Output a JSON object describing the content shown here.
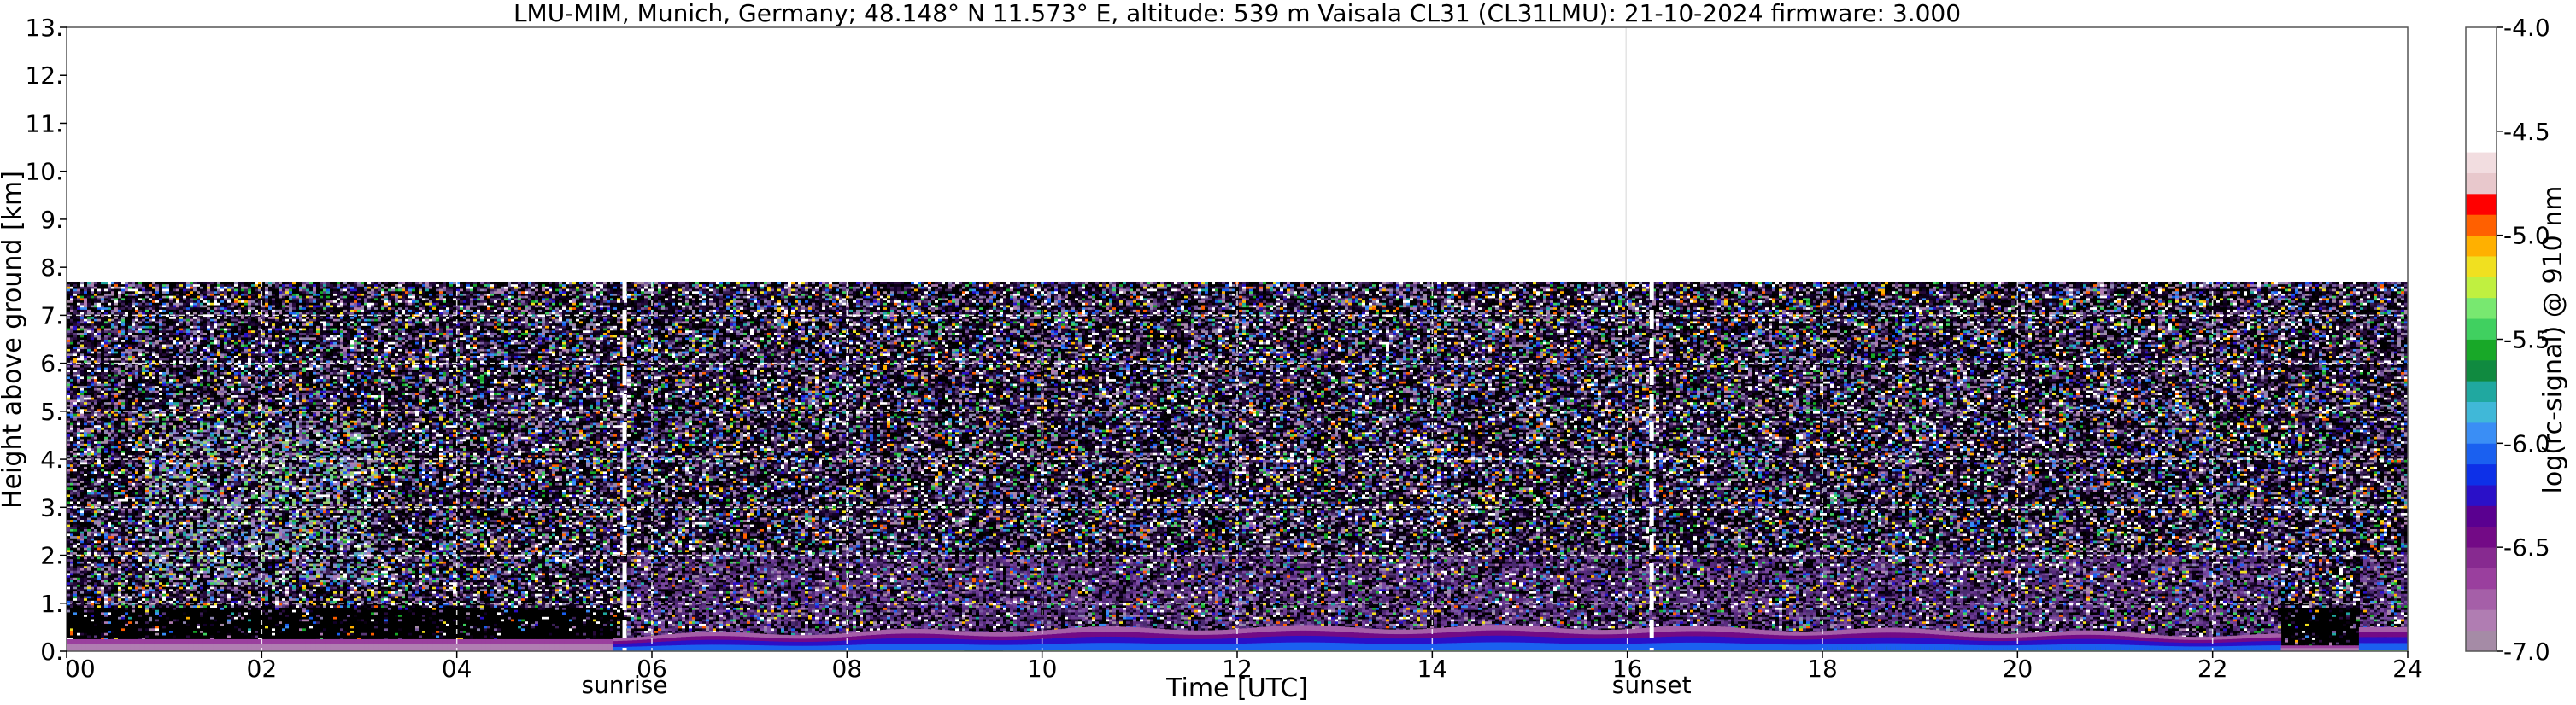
{
  "chart_data": {
    "type": "heatmap",
    "title": "LMU-MIM, Munich, Germany; 48.148° N 11.573° E, altitude: 539 m    Vaisala CL31 (CL31LMU): 21-10-2024    firmware: 3.000",
    "xlabel": "Time [UTC]",
    "ylabel": "Height above ground [km]",
    "xlim": [
      0,
      24
    ],
    "ylim": [
      0,
      13
    ],
    "x_ticks": [
      "00",
      "02",
      "04",
      "06",
      "08",
      "10",
      "12",
      "14",
      "16",
      "18",
      "20",
      "22",
      "24"
    ],
    "x_tick_values": [
      0,
      2,
      4,
      6,
      8,
      10,
      12,
      14,
      16,
      18,
      20,
      22,
      24
    ],
    "y_ticks": [
      "0.",
      "1.",
      "2.",
      "3.",
      "4.",
      "5.",
      "6.",
      "7.",
      "8.",
      "9.",
      "10.",
      "11.",
      "12.",
      "13."
    ],
    "y_tick_values": [
      0,
      1,
      2,
      3,
      4,
      5,
      6,
      7,
      8,
      9,
      10,
      11,
      12,
      13
    ],
    "grid": true,
    "data_top_km": 7.7,
    "markers": [
      {
        "label": "sunrise",
        "x": 5.72
      },
      {
        "label": "sunset",
        "x": 16.25
      }
    ],
    "colorbar": {
      "label": "log(rc-signal) @ 910 nm",
      "range": [
        -7.0,
        -4.0
      ],
      "ticks": [
        "-4.0",
        "-4.5",
        "-5.0",
        "-5.5",
        "-6.0",
        "-6.5",
        "-7.0"
      ],
      "tick_values": [
        -4.0,
        -4.5,
        -5.0,
        -5.5,
        -6.0,
        -6.5,
        -7.0
      ],
      "colors": [
        {
          "from": -7.0,
          "to": -6.9,
          "color": "#a58ba6"
        },
        {
          "from": -6.9,
          "to": -6.8,
          "color": "#b07db2"
        },
        {
          "from": -6.8,
          "to": -6.7,
          "color": "#a55fa8"
        },
        {
          "from": -6.7,
          "to": -6.6,
          "color": "#9a3f9e"
        },
        {
          "from": -6.6,
          "to": -6.5,
          "color": "#872a90"
        },
        {
          "from": -6.5,
          "to": -6.4,
          "color": "#730a86"
        },
        {
          "from": -6.4,
          "to": -6.3,
          "color": "#5a0090"
        },
        {
          "from": -6.3,
          "to": -6.2,
          "color": "#2a10c8"
        },
        {
          "from": -6.2,
          "to": -6.1,
          "color": "#0d30e8"
        },
        {
          "from": -6.1,
          "to": -6.0,
          "color": "#1a60f0"
        },
        {
          "from": -6.0,
          "to": -5.9,
          "color": "#3a8ef5"
        },
        {
          "from": -5.9,
          "to": -5.8,
          "color": "#40b8d8"
        },
        {
          "from": -5.8,
          "to": -5.7,
          "color": "#20a8a0"
        },
        {
          "from": -5.7,
          "to": -5.6,
          "color": "#108a40"
        },
        {
          "from": -5.6,
          "to": -5.5,
          "color": "#18a828"
        },
        {
          "from": -5.5,
          "to": -5.4,
          "color": "#40d060"
        },
        {
          "from": -5.4,
          "to": -5.3,
          "color": "#78e870"
        },
        {
          "from": -5.3,
          "to": -5.2,
          "color": "#c0f040"
        },
        {
          "from": -5.2,
          "to": -5.1,
          "color": "#f0e020"
        },
        {
          "from": -5.1,
          "to": -5.0,
          "color": "#ffb000"
        },
        {
          "from": -5.0,
          "to": -4.9,
          "color": "#ff6000"
        },
        {
          "from": -4.9,
          "to": -4.8,
          "color": "#ff0000"
        },
        {
          "from": -4.8,
          "to": -4.7,
          "color": "#e8c8cc"
        },
        {
          "from": -4.7,
          "to": -4.6,
          "color": "#f2dde0"
        },
        {
          "from": -4.6,
          "to": -4.0,
          "color": "#ffffff"
        }
      ]
    }
  }
}
